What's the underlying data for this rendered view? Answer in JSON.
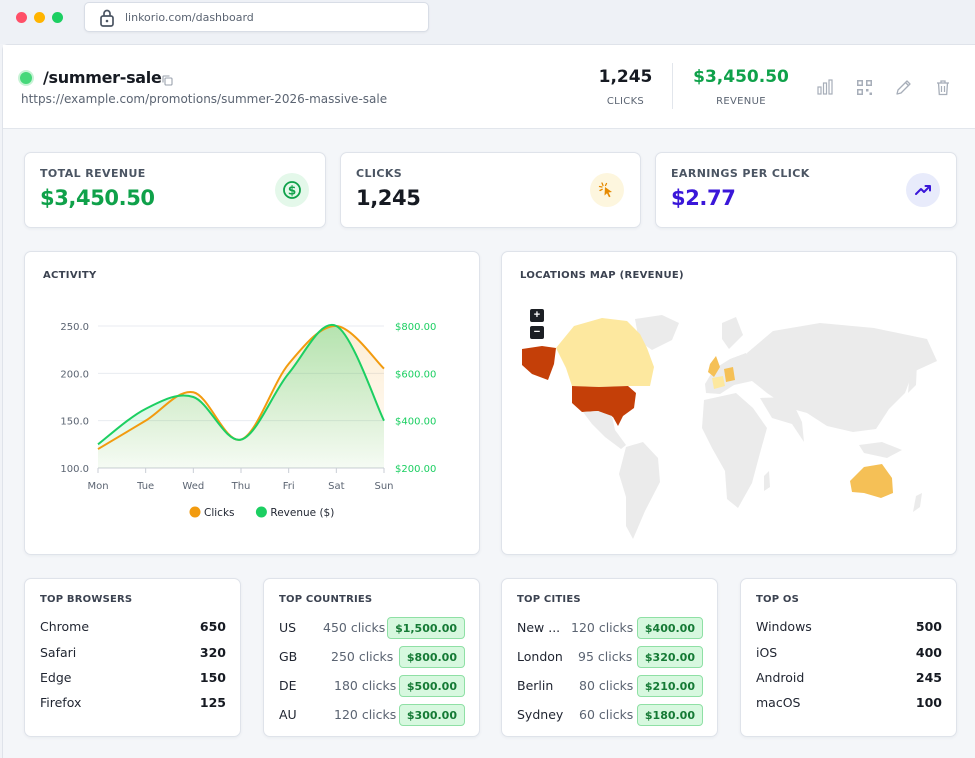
{
  "browser": {
    "url": "linkorio.com/dashboard"
  },
  "link": {
    "slug": "/summer-sale",
    "destination": "https://example.com/promotions/summer-2026-massive-sale",
    "status_color": "#46d87a"
  },
  "header_stats": {
    "clicks_value": "1,245",
    "clicks_label": "CLICKS",
    "revenue_value": "$3,450.50",
    "revenue_label": "REVENUE"
  },
  "actions": [
    "chart-icon",
    "qr-icon",
    "edit-icon",
    "trash-icon"
  ],
  "kpis": [
    {
      "label": "TOTAL REVENUE",
      "value": "$3,450.50",
      "color": "#0fa14a",
      "icon": "dollar-icon"
    },
    {
      "label": "CLICKS",
      "value": "1,245",
      "color": "#161a22",
      "icon": "cursor-click-icon"
    },
    {
      "label": "EARNINGS PER CLICK",
      "value": "$2.77",
      "color": "#3a17d9",
      "icon": "trending-up-icon"
    }
  ],
  "activity": {
    "title": "ACTIVITY"
  },
  "map": {
    "title": "LOCATIONS MAP (REVENUE)",
    "zoom_in": "+",
    "zoom_out": "−"
  },
  "chart_data": {
    "type": "line",
    "categories": [
      "Mon",
      "Tue",
      "Wed",
      "Thu",
      "Fri",
      "Sat",
      "Sun"
    ],
    "series": [
      {
        "name": "Clicks",
        "axis": "left",
        "color": "#f29b0f",
        "values": [
          120,
          150,
          180,
          130,
          210,
          250,
          205
        ]
      },
      {
        "name": "Revenue ($)",
        "axis": "right",
        "color": "#1ccf62",
        "values": [
          300,
          450,
          500,
          320,
          600,
          800,
          400
        ]
      }
    ],
    "y_left": {
      "ticks": [
        "100.0",
        "150.0",
        "200.0",
        "250.0"
      ],
      "range": [
        100,
        250
      ]
    },
    "y_right": {
      "ticks": [
        "$200.00",
        "$400.00",
        "$600.00",
        "$800.00"
      ],
      "range": [
        200,
        800
      ]
    },
    "legend": [
      "Clicks",
      "Revenue ($)"
    ],
    "legend_position": "bottom",
    "grid": true
  },
  "tables": {
    "browsers": {
      "title": "TOP BROWSERS",
      "rows": [
        {
          "name": "Chrome",
          "value": "650"
        },
        {
          "name": "Safari",
          "value": "320"
        },
        {
          "name": "Edge",
          "value": "150"
        },
        {
          "name": "Firefox",
          "value": "125"
        }
      ]
    },
    "countries": {
      "title": "TOP COUNTRIES",
      "rows": [
        {
          "name": "US",
          "clicks": "450 clicks",
          "revenue": "$1,500.00"
        },
        {
          "name": "GB",
          "clicks": "250 clicks",
          "revenue": "$800.00"
        },
        {
          "name": "DE",
          "clicks": "180 clicks",
          "revenue": "$500.00"
        },
        {
          "name": "AU",
          "clicks": "120 clicks",
          "revenue": "$300.00"
        }
      ]
    },
    "cities": {
      "title": "TOP CITIES",
      "rows": [
        {
          "name": "New ...",
          "clicks": "120 clicks",
          "revenue": "$400.00"
        },
        {
          "name": "London",
          "clicks": "95 clicks",
          "revenue": "$320.00"
        },
        {
          "name": "Berlin",
          "clicks": "80 clicks",
          "revenue": "$210.00"
        },
        {
          "name": "Sydney",
          "clicks": "60 clicks",
          "revenue": "$180.00"
        }
      ]
    },
    "os": {
      "title": "TOP OS",
      "rows": [
        {
          "name": "Windows",
          "value": "500"
        },
        {
          "name": "iOS",
          "value": "400"
        },
        {
          "name": "Android",
          "value": "245"
        },
        {
          "name": "macOS",
          "value": "100"
        }
      ]
    }
  }
}
